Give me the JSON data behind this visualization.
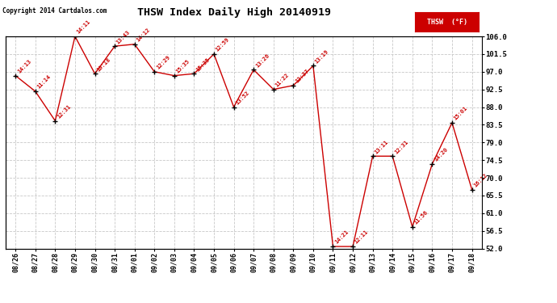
{
  "title": "THSW Index Daily High 20140919",
  "dates": [
    "08/26",
    "08/27",
    "08/28",
    "08/29",
    "08/30",
    "08/31",
    "09/01",
    "09/02",
    "09/03",
    "09/04",
    "09/05",
    "09/06",
    "09/07",
    "09/08",
    "09/09",
    "09/10",
    "09/11",
    "09/12",
    "09/13",
    "09/14",
    "09/15",
    "09/16",
    "09/17",
    "09/18"
  ],
  "values": [
    96.0,
    92.0,
    84.5,
    106.0,
    96.5,
    103.5,
    104.0,
    97.0,
    96.0,
    96.5,
    101.5,
    88.0,
    97.5,
    92.5,
    93.5,
    98.5,
    52.5,
    52.5,
    75.5,
    75.5,
    57.5,
    73.5,
    84.0,
    67.0
  ],
  "labels": [
    "14:13",
    "11:14",
    "12:31",
    "14:11",
    "10:18",
    "13:43",
    "14:12",
    "12:29",
    "15:35",
    "15:35",
    "12:59",
    "13:52",
    "13:26",
    "11:22",
    "12:37",
    "13:19",
    "14:21",
    "12:11",
    "13:11",
    "12:31",
    "11:56",
    "14:20",
    "15:01",
    "16:12"
  ],
  "ylim": [
    52.0,
    106.0
  ],
  "yticks": [
    52.0,
    56.5,
    61.0,
    65.5,
    70.0,
    74.5,
    79.0,
    83.5,
    88.0,
    92.5,
    97.0,
    101.5,
    106.0
  ],
  "line_color": "#cc0000",
  "marker_color": "#000000",
  "label_color": "#cc0000",
  "bg_color": "#ffffff",
  "grid_color": "#c8c8c8",
  "title_color": "#000000",
  "copyright_text": "Copyright 2014 Cartdalos.com",
  "legend_text": "THSW  (°F)",
  "legend_bg": "#cc0000",
  "legend_text_color": "#ffffff"
}
